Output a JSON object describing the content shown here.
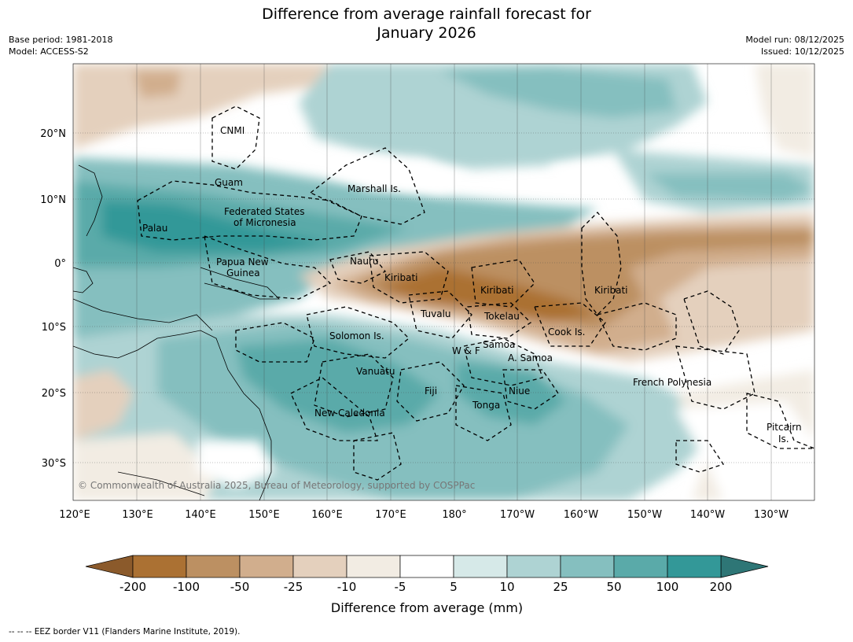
{
  "header": {
    "title_line1": "Difference from average rainfall forecast for",
    "title_line2": "January 2026",
    "base_period": "Base period: 1981-2018",
    "model": "Model: ACCESS-S2",
    "model_run": "Model run: 08/12/2025",
    "issued": "Issued: 10/12/2025"
  },
  "map": {
    "lon_ticks": [
      "120°E",
      "130°E",
      "140°E",
      "150°E",
      "160°E",
      "170°E",
      "180°",
      "170°W",
      "160°W",
      "150°W",
      "140°W",
      "130°W"
    ],
    "lat_ticks": [
      "20°N",
      "10°N",
      "0°",
      "10°S",
      "20°S",
      "30°S"
    ],
    "copyright": "© Commonwealth of Australia 2025, Bureau of Meteorology, supported by COSPPac",
    "regions": [
      {
        "id": "cnmi",
        "text": "CNMI"
      },
      {
        "id": "guam",
        "text": "Guam"
      },
      {
        "id": "marshall",
        "text": "Marshall Is."
      },
      {
        "id": "fsm1",
        "text": "Federated States"
      },
      {
        "id": "fsm2",
        "text": "of Micronesia"
      },
      {
        "id": "palau",
        "text": "Palau"
      },
      {
        "id": "nauru",
        "text": "Nauru"
      },
      {
        "id": "png1",
        "text": "Papua New"
      },
      {
        "id": "png2",
        "text": "Guinea"
      },
      {
        "id": "kiribati_w",
        "text": "Kiribati"
      },
      {
        "id": "kiribati_c",
        "text": "Kiribati"
      },
      {
        "id": "kiribati_e",
        "text": "Kiribati"
      },
      {
        "id": "tuvalu",
        "text": "Tuvalu"
      },
      {
        "id": "tokelau",
        "text": "Tokelau"
      },
      {
        "id": "cook",
        "text": "Cook Is."
      },
      {
        "id": "solomon",
        "text": "Solomon Is."
      },
      {
        "id": "samoa",
        "text": "Samoa"
      },
      {
        "id": "wf",
        "text": "W & F"
      },
      {
        "id": "asamoa",
        "text": "A. Samoa"
      },
      {
        "id": "vanuatu",
        "text": "Vanuatu"
      },
      {
        "id": "fiji",
        "text": "Fiji"
      },
      {
        "id": "niue",
        "text": "Niue"
      },
      {
        "id": "tonga",
        "text": "Tonga"
      },
      {
        "id": "newcal",
        "text": "New Caledonia"
      },
      {
        "id": "frpoly",
        "text": "French Polynesia"
      },
      {
        "id": "pitcairn1",
        "text": "Pitcairn"
      },
      {
        "id": "pitcairn2",
        "text": "Is."
      }
    ]
  },
  "colorbar": {
    "labels": [
      "-200",
      "-100",
      "-50",
      "-25",
      "-10",
      "-5",
      "5",
      "10",
      "25",
      "50",
      "100",
      "200"
    ],
    "colors": [
      "#ab7133",
      "#bc9062",
      "#d1ae8d",
      "#e4d0bd",
      "#f2ece3",
      "#ffffff",
      "#d6e9e8",
      "#aed3d3",
      "#85bfbf",
      "#5aaaa9",
      "#339898"
    ],
    "under_color": "#8b5a2b",
    "over_color": "#2e7676",
    "title": "Difference from average (mm)"
  },
  "footer": {
    "text": "--  --  -- EEZ border V11 (Flanders Marine Institute, 2019)."
  }
}
